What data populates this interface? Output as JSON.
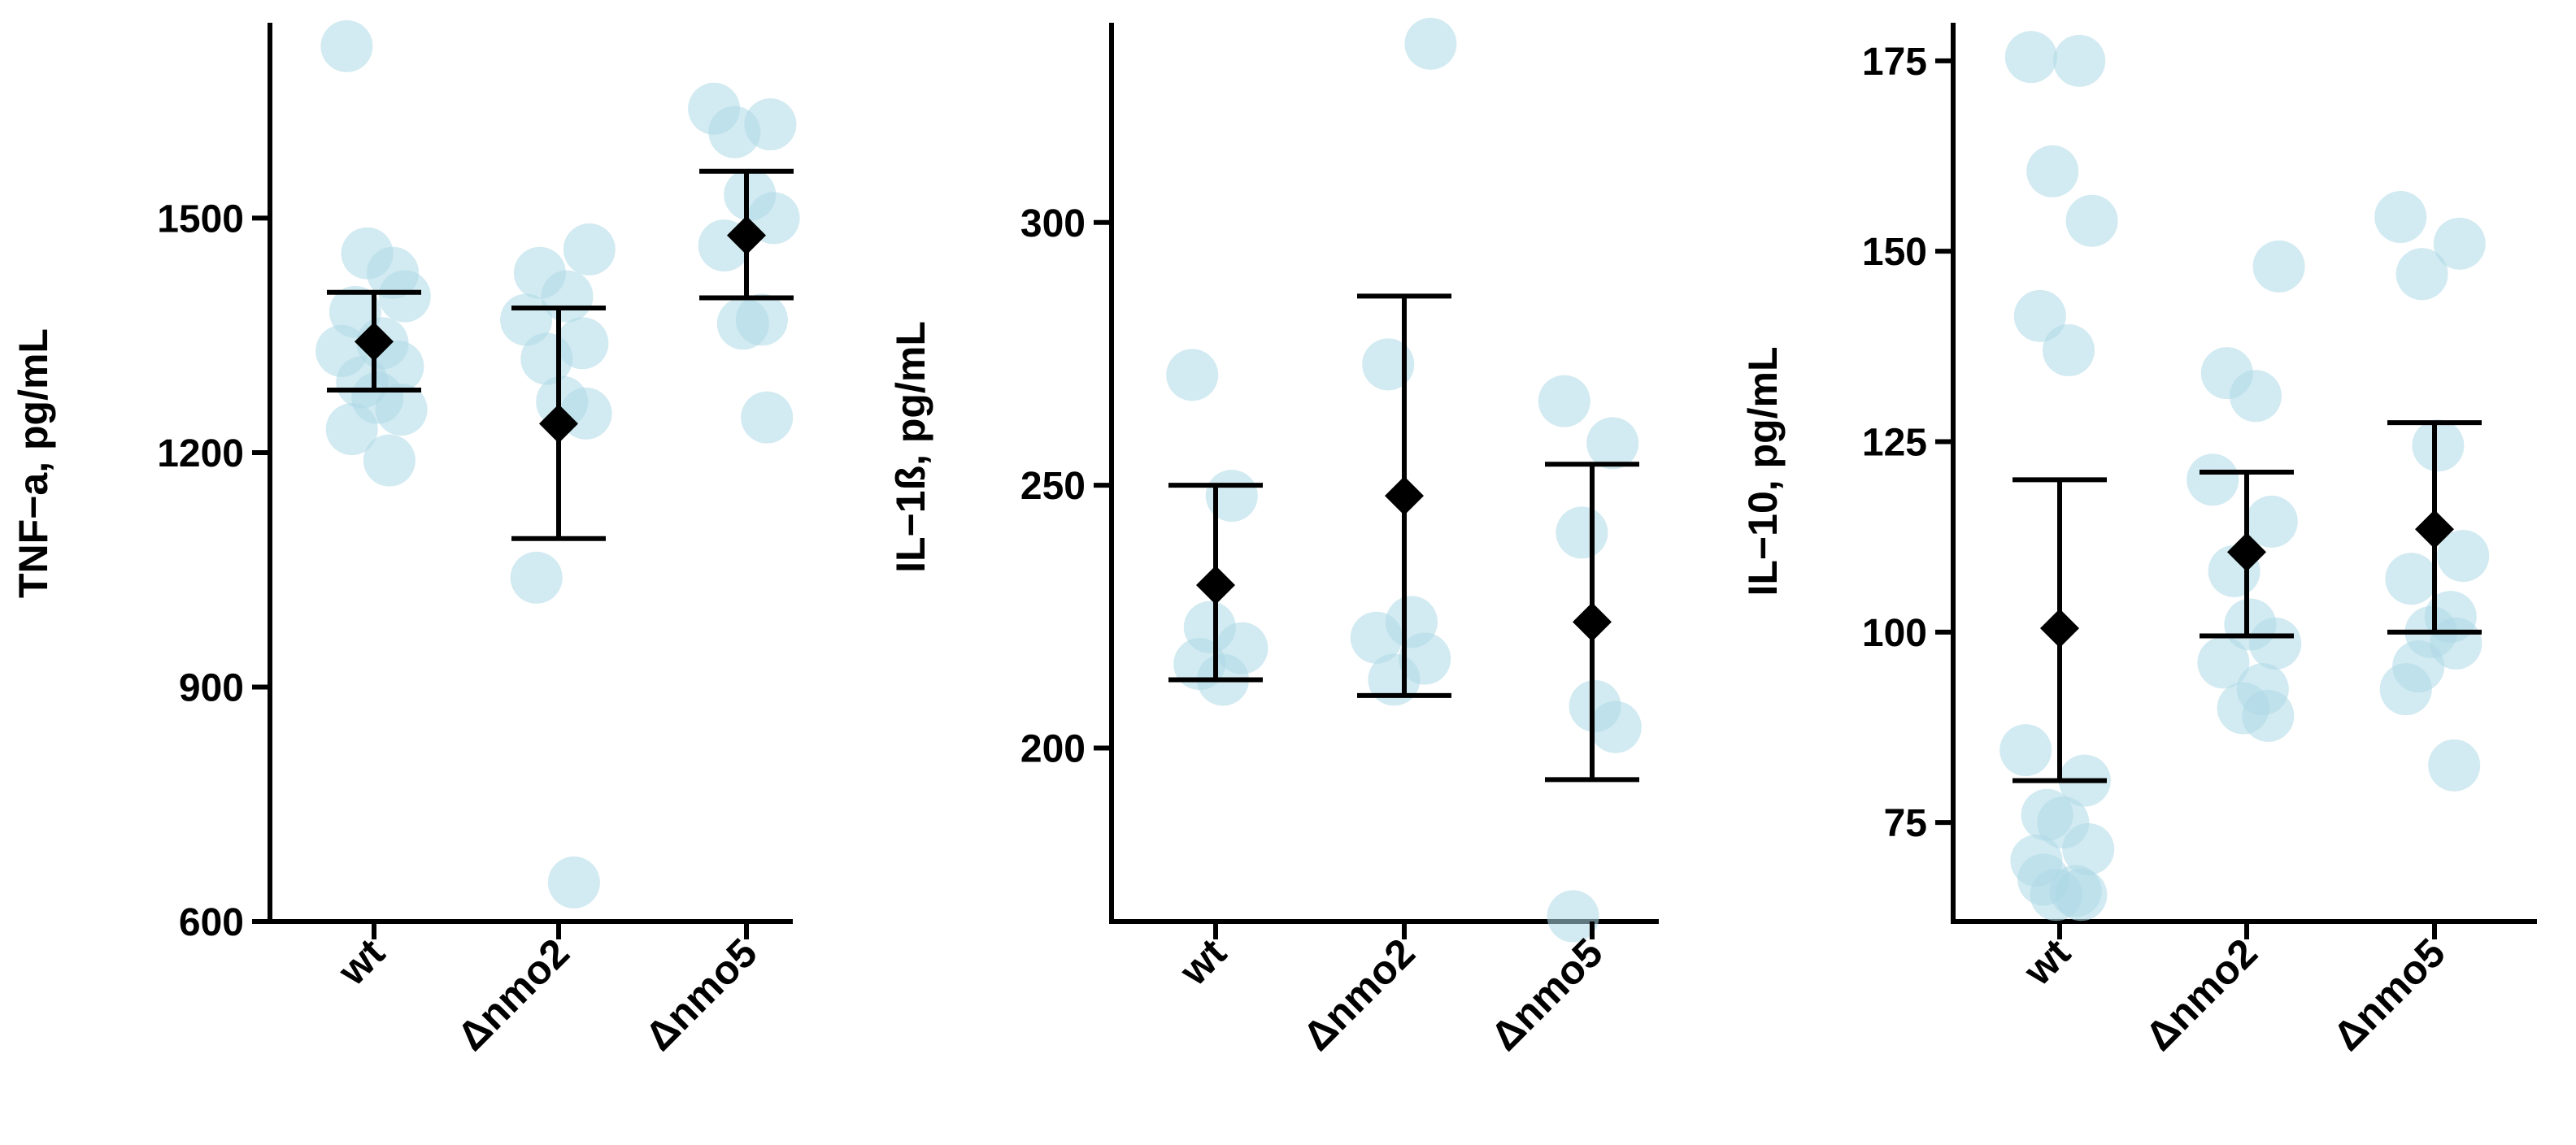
{
  "chart_data": [
    {
      "type": "scatter",
      "ylabel": "TNF−a, pg/mL",
      "categories": [
        "wt",
        "Δnmo2",
        "Δnmo5"
      ],
      "ylim": [
        600,
        1750
      ],
      "yticks": [
        600,
        900,
        1200,
        1500
      ],
      "grid": false,
      "points": [
        [
          1720,
          1430,
          1455,
          1400,
          1380,
          1340,
          1330,
          1310,
          1290,
          1270,
          1255,
          1230,
          1190
        ],
        [
          1460,
          1430,
          1400,
          1370,
          1340,
          1320,
          1265,
          1250,
          1040,
          650
        ],
        [
          1640,
          1620,
          1610,
          1530,
          1500,
          1465,
          1370,
          1365,
          1245
        ]
      ],
      "mean": [
        1342,
        1237,
        1478
      ],
      "error_low": [
        1280,
        1090,
        1398
      ],
      "error_high": [
        1405,
        1385,
        1560
      ]
    },
    {
      "type": "scatter",
      "ylabel": "IL−1ß, pg/mL",
      "categories": [
        "wt",
        "Δnmo2",
        "Δnmo5"
      ],
      "ylim": [
        167,
        338
      ],
      "yticks": [
        200,
        250,
        300
      ],
      "grid": false,
      "points": [
        [
          271,
          248,
          223,
          219,
          216,
          213
        ],
        [
          334,
          273,
          224,
          221,
          217,
          213
        ],
        [
          266,
          258,
          241,
          208,
          204,
          168
        ]
      ],
      "mean": [
        231,
        248,
        224
      ],
      "error_low": [
        213,
        210,
        194
      ],
      "error_high": [
        250,
        286,
        254
      ]
    },
    {
      "type": "scatter",
      "ylabel": "IL−10, pg/mL",
      "categories": [
        "wt",
        "Δnmo2",
        "Δnmo5"
      ],
      "ylim": [
        62,
        180
      ],
      "yticks": [
        75,
        100,
        125,
        150,
        175
      ],
      "grid": false,
      "points": [
        [
          175.5,
          175,
          160.5,
          154,
          141.5,
          137,
          84.5,
          80.5,
          76,
          75,
          71.5,
          70,
          66,
          65.5,
          65.5,
          67.5
        ],
        [
          148,
          134,
          131,
          120,
          114.5,
          108,
          101,
          98.5,
          96,
          92.5,
          90,
          89
        ],
        [
          154.5,
          151,
          147,
          124.5,
          110,
          107,
          102,
          100,
          98.5,
          95.5,
          92.5,
          82.5
        ]
      ],
      "mean": [
        100.5,
        110.5,
        113.5
      ],
      "error_low": [
        80.5,
        99.5,
        100
      ],
      "error_high": [
        120,
        121,
        127.5
      ]
    }
  ],
  "colors": {
    "points": "#add8e6",
    "mean": "#000000",
    "axis": "#000000"
  }
}
